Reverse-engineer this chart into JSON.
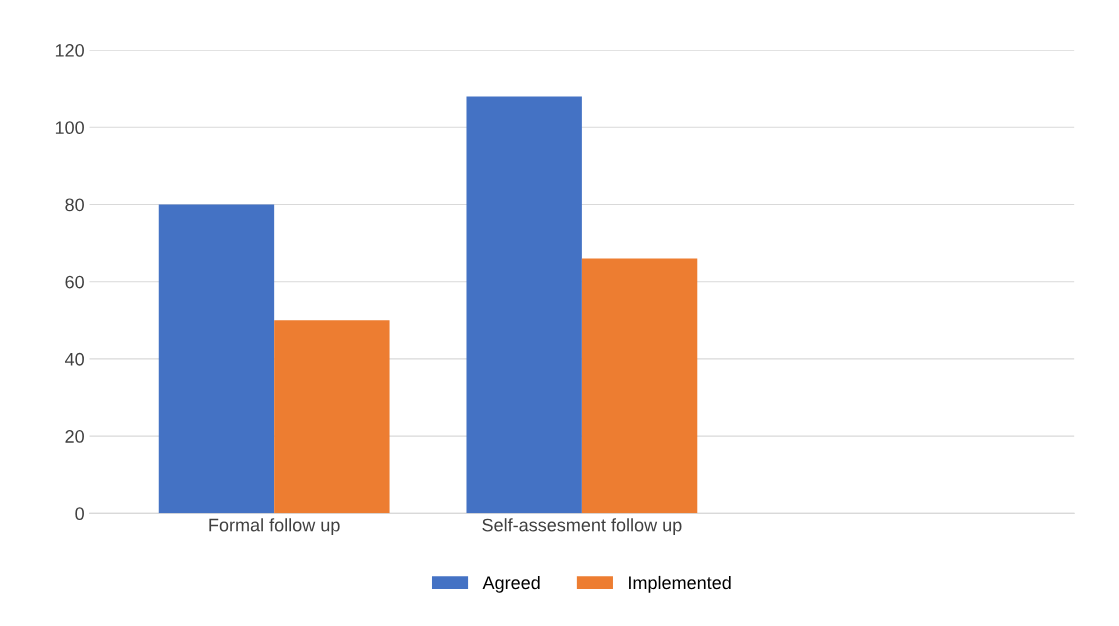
{
  "chart_data": {
    "type": "bar",
    "categories": [
      "Formal follow up",
      "Self-assesment follow up"
    ],
    "series": [
      {
        "name": "Agreed",
        "color": "#4472c4",
        "values": [
          80,
          108
        ]
      },
      {
        "name": "Implemented",
        "color": "#ed7d31",
        "values": [
          50,
          66
        ]
      }
    ],
    "ylim": [
      0,
      120
    ],
    "yticks": [
      0,
      20,
      40,
      60,
      80,
      100,
      120
    ],
    "grid": "y",
    "legend": "bottom"
  }
}
